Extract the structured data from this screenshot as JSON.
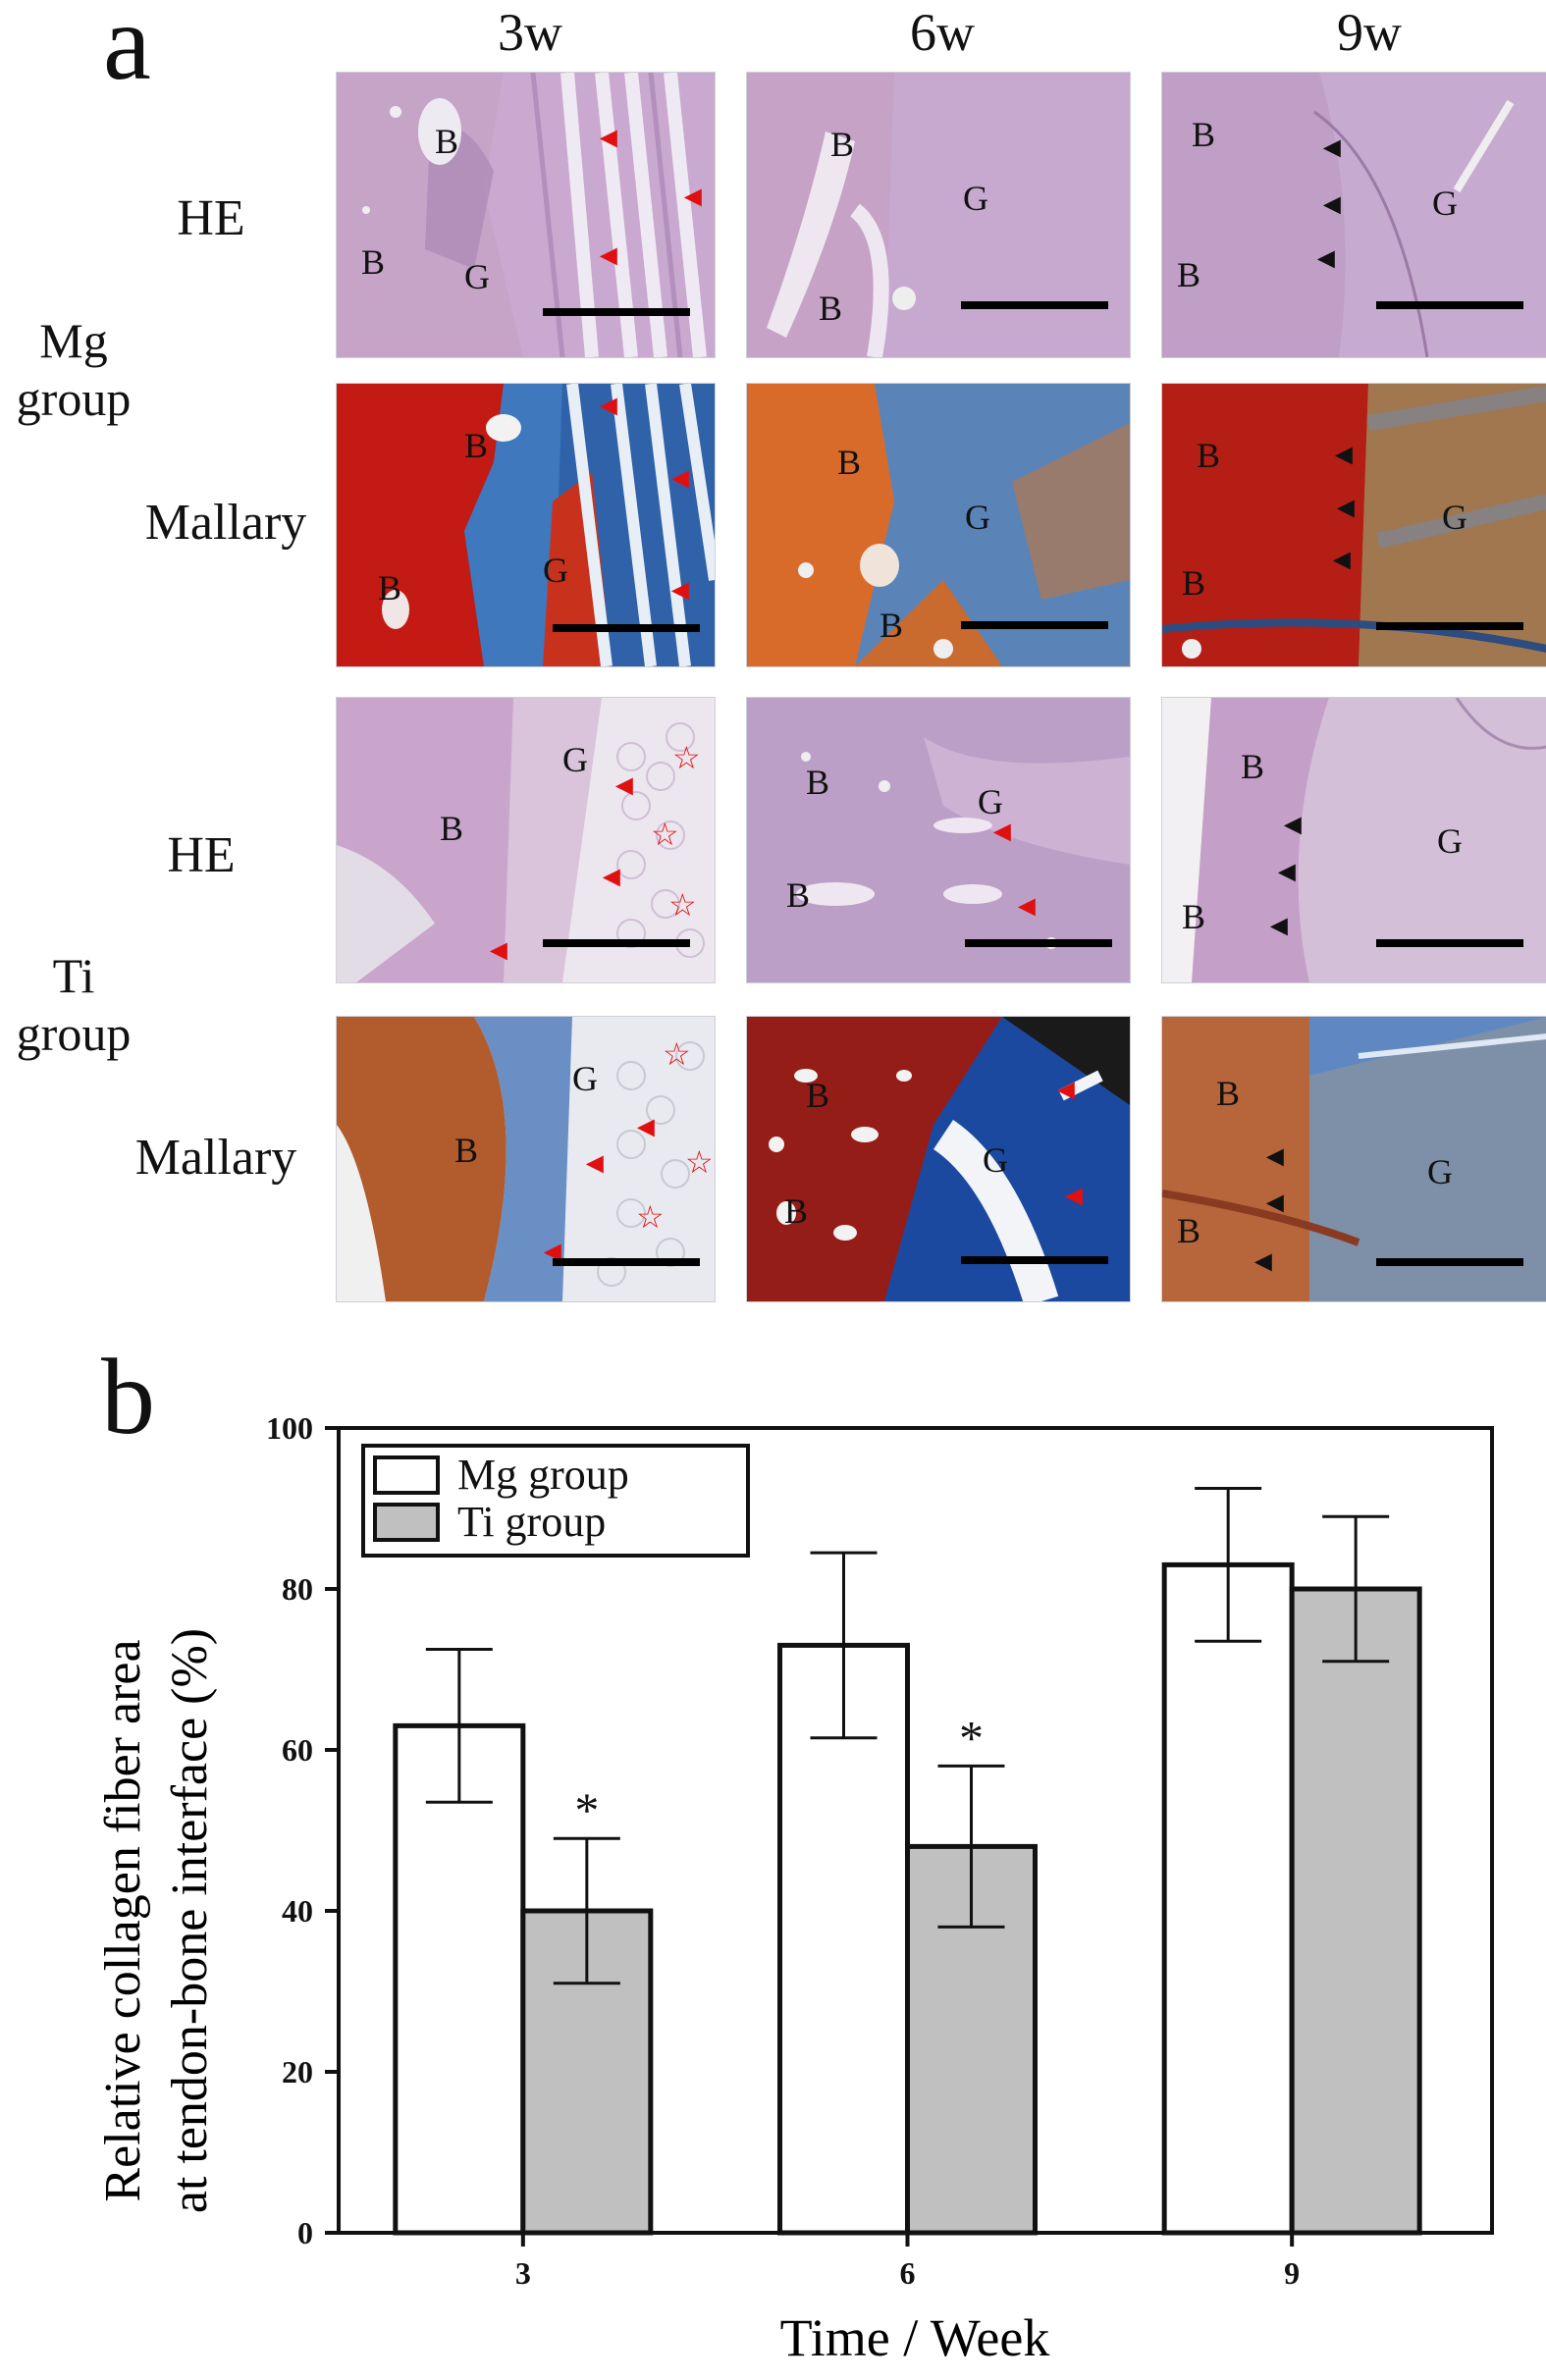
{
  "panel_a": {
    "letter": "a",
    "columns": [
      "3w",
      "6w",
      "9w"
    ],
    "groups": [
      {
        "label_line1": "Mg",
        "label_line2": "group",
        "rows": [
          {
            "stain": "HE",
            "tiles": [
              {
                "labels": [
                  "B",
                  "B",
                  "G"
                ],
                "arrows": [
                  "red",
                  "red",
                  "red"
                ]
              },
              {
                "labels": [
                  "B",
                  "G",
                  "B"
                ],
                "arrows": []
              },
              {
                "labels": [
                  "B",
                  "B",
                  "G"
                ],
                "arrows": [
                  "black",
                  "black",
                  "black"
                ]
              }
            ]
          },
          {
            "stain": "Mallary",
            "tiles": [
              {
                "labels": [
                  "B",
                  "B",
                  "G"
                ],
                "arrows": [
                  "red",
                  "red",
                  "red"
                ]
              },
              {
                "labels": [
                  "B",
                  "G",
                  "B"
                ],
                "arrows": []
              },
              {
                "labels": [
                  "B",
                  "G",
                  "B"
                ],
                "arrows": [
                  "black",
                  "black",
                  "black"
                ]
              }
            ]
          }
        ]
      },
      {
        "label_line1": "Ti",
        "label_line2": "group",
        "rows": [
          {
            "stain": "HE",
            "tiles": [
              {
                "labels": [
                  "G",
                  "B"
                ],
                "arrows": [
                  "red",
                  "red",
                  "red"
                ],
                "stars": [
                  "☆",
                  "☆",
                  "☆"
                ]
              },
              {
                "labels": [
                  "B",
                  "G",
                  "B"
                ],
                "arrows": [
                  "red",
                  "red"
                ]
              },
              {
                "labels": [
                  "B",
                  "G",
                  "B"
                ],
                "arrows": [
                  "black",
                  "black",
                  "black"
                ]
              }
            ]
          },
          {
            "stain": "Mallary",
            "tiles": [
              {
                "labels": [
                  "G",
                  "B"
                ],
                "arrows": [
                  "red",
                  "red",
                  "red"
                ],
                "stars": [
                  "☆",
                  "☆",
                  "☆"
                ]
              },
              {
                "labels": [
                  "B",
                  "G",
                  "B"
                ],
                "arrows": [
                  "red",
                  "red"
                ]
              },
              {
                "labels": [
                  "B",
                  "G",
                  "B"
                ],
                "arrows": [
                  "black",
                  "black",
                  "black"
                ]
              }
            ]
          }
        ]
      }
    ]
  },
  "panel_b": {
    "letter": "b"
  },
  "chart_data": {
    "type": "bar",
    "categories": [
      "3",
      "6",
      "9"
    ],
    "series": [
      {
        "name": "Mg group",
        "values": [
          63,
          73,
          83
        ],
        "errors": [
          9.5,
          11.5,
          9.5
        ],
        "color": "#ffffff"
      },
      {
        "name": "Ti group",
        "values": [
          40,
          48,
          80
        ],
        "errors": [
          9,
          10,
          9
        ],
        "color": "#c0c0c0"
      }
    ],
    "significance": [
      {
        "category": "3",
        "series": "Ti group",
        "label": "*"
      },
      {
        "category": "6",
        "series": "Ti group",
        "label": "*"
      }
    ],
    "xlabel": "Time / Week",
    "ylabel_line1": "Relative collagen fiber area",
    "ylabel_line2": "at tendon-bone interface (%)",
    "ylim": [
      0,
      100
    ],
    "yticks": [
      0,
      20,
      40,
      60,
      80,
      100
    ],
    "legend_position": "top-left",
    "grid": false
  }
}
